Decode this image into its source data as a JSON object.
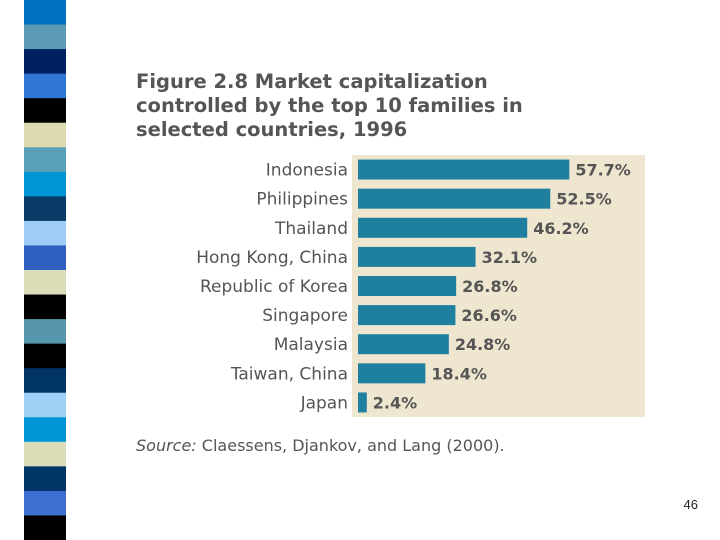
{
  "slide": {
    "title": "Figure 2.8 Market capitalization\ncontrolled by the top 10 families in\nselected countries, 1996",
    "source_label": "Source:",
    "source_text": "Claessens, Djankov, and Lang (2000).",
    "page_number": "46"
  },
  "colors": {
    "bar": "#1f7f9f",
    "plot_bg": "#efe6cf",
    "text": "#555555",
    "strip": [
      "#0070c0",
      "#5b9bb5",
      "#002060",
      "#2e75d6",
      "#000000",
      "#dddab0",
      "#5aa0b8",
      "#0096d6",
      "#0a3a66",
      "#9ecdf5",
      "#2f5fbf",
      "#dcdcb8",
      "#000000",
      "#5596ad",
      "#000000",
      "#003366",
      "#9fd0f5",
      "#0096d6",
      "#dcdcb8",
      "#003366",
      "#3d6fd0",
      "#000000"
    ]
  },
  "chart_data": {
    "type": "bar",
    "orientation": "horizontal",
    "categories": [
      "Indonesia",
      "Philippines",
      "Thailand",
      "Hong Kong, China",
      "Republic of Korea",
      "Singapore",
      "Malaysia",
      "Taiwan, China",
      "Japan"
    ],
    "values": [
      57.7,
      52.5,
      46.2,
      32.1,
      26.8,
      26.6,
      24.8,
      18.4,
      2.4
    ],
    "value_labels": [
      "57.7%",
      "52.5%",
      "46.2%",
      "32.1%",
      "26.8%",
      "26.6%",
      "24.8%",
      "18.4%",
      "2.4%"
    ],
    "title": "Figure 2.8 Market capitalization controlled by the top 10 families in selected countries, 1996",
    "xlabel": "",
    "ylabel": "",
    "xlim": [
      0,
      80
    ],
    "grid": false,
    "legend": "none"
  }
}
